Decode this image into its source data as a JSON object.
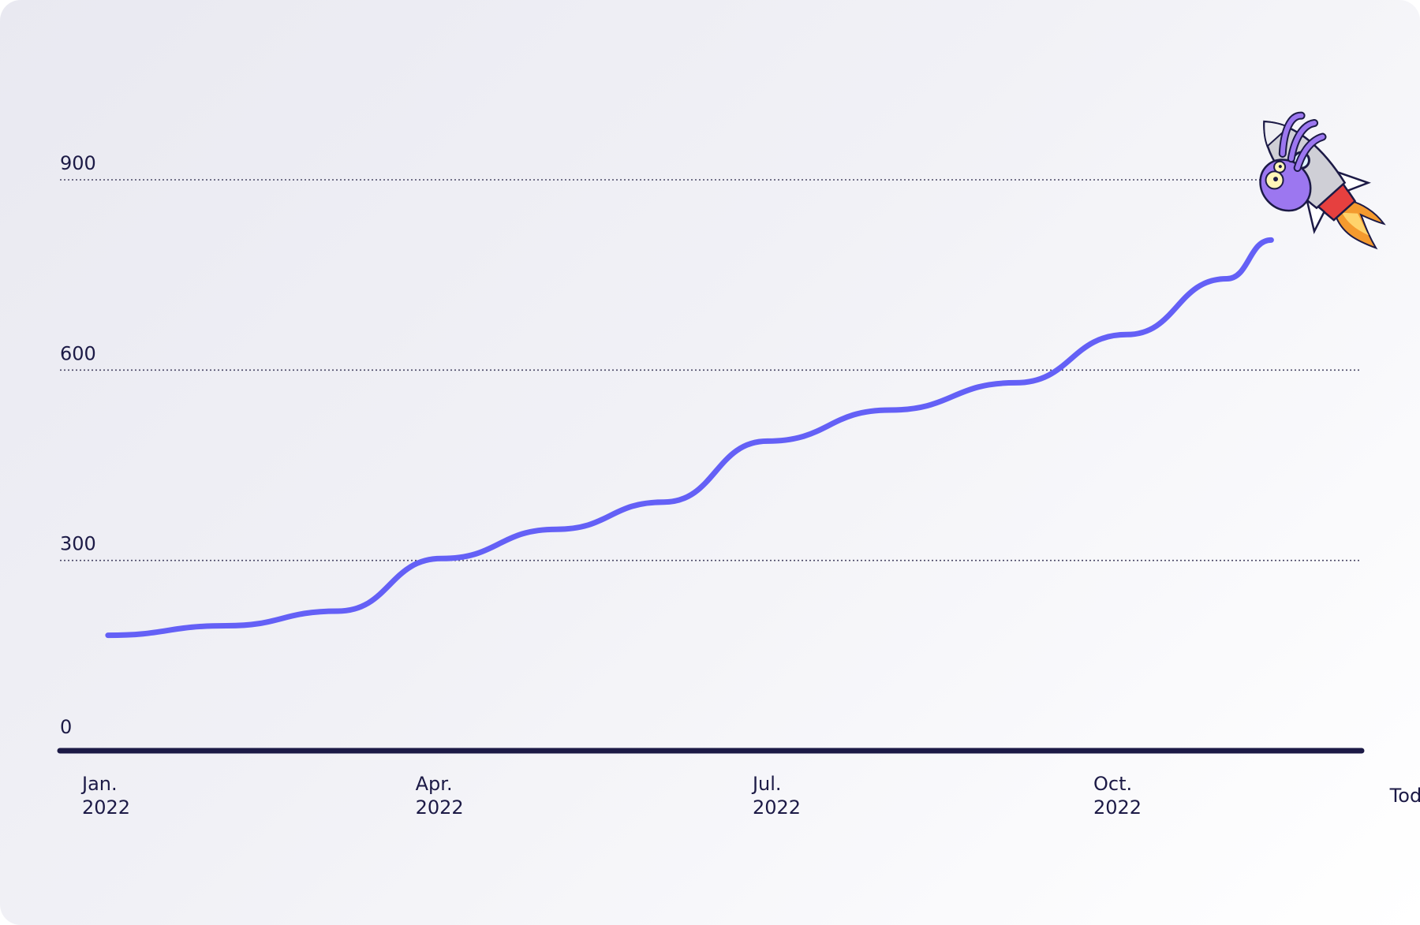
{
  "chart_data": {
    "type": "line",
    "title": "",
    "xlabel": "",
    "ylabel": "",
    "ylim": [
      0,
      1000
    ],
    "yticks": [
      {
        "value": 0,
        "label": "0"
      },
      {
        "value": 300,
        "label": "300"
      },
      {
        "value": 600,
        "label": "600"
      },
      {
        "value": 900,
        "label": "900"
      }
    ],
    "gridlines": [
      300,
      600,
      900
    ],
    "xticks": [
      {
        "x": "2022-01-01",
        "lines": [
          "Jan.",
          "2022"
        ]
      },
      {
        "x": "2022-04-01",
        "lines": [
          "Apr.",
          "2022"
        ]
      },
      {
        "x": "2022-07-01",
        "lines": [
          "Jul.",
          "2022"
        ]
      },
      {
        "x": "2022-10-01",
        "lines": [
          "Oct.",
          "2022"
        ]
      },
      {
        "x": "2022-12-20",
        "lines": [
          "Today"
        ]
      }
    ],
    "series": [
      {
        "color": "#6460f6",
        "points": [
          {
            "x": "2022-01-08",
            "y": 182
          },
          {
            "x": "2022-02-09",
            "y": 197
          },
          {
            "x": "2022-03-11",
            "y": 220
          },
          {
            "x": "2022-04-08",
            "y": 303
          },
          {
            "x": "2022-05-09",
            "y": 349
          },
          {
            "x": "2022-06-07",
            "y": 392
          },
          {
            "x": "2022-07-05",
            "y": 488
          },
          {
            "x": "2022-08-07",
            "y": 537
          },
          {
            "x": "2022-09-10",
            "y": 580
          },
          {
            "x": "2022-10-10",
            "y": 656
          },
          {
            "x": "2022-11-06",
            "y": 744
          },
          {
            "x": "2022-11-18",
            "y": 805
          }
        ]
      }
    ],
    "grid": true,
    "legend": "none",
    "decoration": "cartoon-rocket-mascot"
  }
}
